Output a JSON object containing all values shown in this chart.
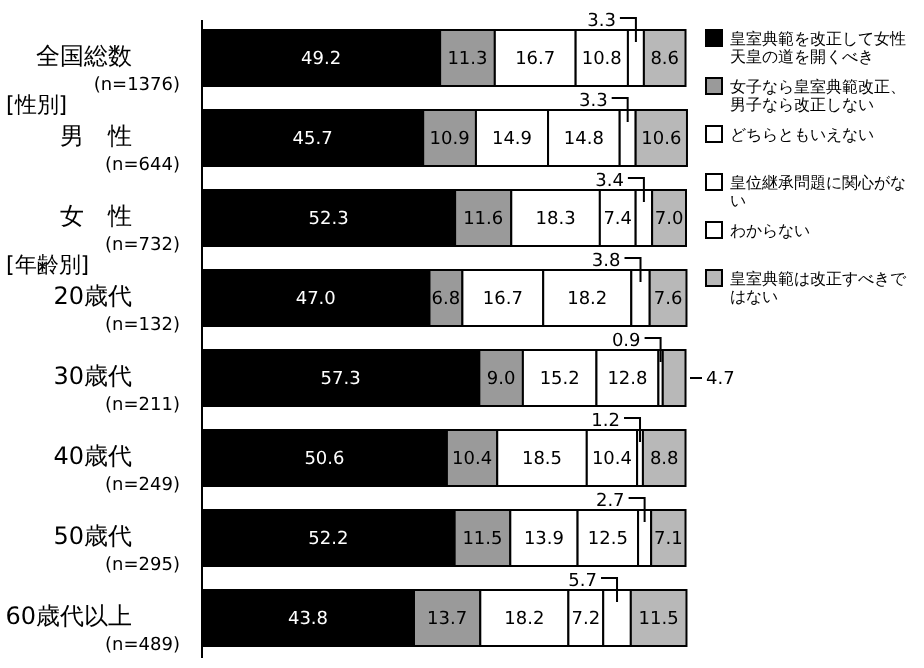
{
  "chart_data": {
    "type": "bar",
    "orientation": "horizontal",
    "stacked": true,
    "legend": "right",
    "xlim": [
      0,
      100
    ],
    "categories": [
      "全国総数\n(n=1376)",
      "男　性\n(n=644)",
      "女　性\n(n=732)",
      "20歳代\n(n=132)",
      "30歳代\n(n=211)",
      "40歳代\n(n=249)",
      "50歳代\n(n=295)",
      "60歳代以上\n(n=489)"
    ],
    "annotations": [
      "[性別]",
      "[年齢別]"
    ],
    "series": [
      {
        "name": "皇室典範を改正して女性天皇の道を開くべき",
        "color": "#000000",
        "values": [
          49.2,
          45.7,
          52.3,
          47.0,
          57.3,
          50.6,
          52.2,
          43.8
        ],
        "value_labels": [
          "49.2",
          "45.7",
          "52.3",
          "47.0",
          "57.3",
          "50.6",
          "52.2",
          "43.8"
        ]
      },
      {
        "name": "女子なら皇室典範改正、男子なら改正しない",
        "color": "#9a9a9a",
        "values": [
          11.3,
          10.9,
          11.6,
          6.8,
          9.0,
          10.4,
          11.5,
          13.7
        ],
        "value_labels": [
          "11.3",
          "10.9",
          "11.6",
          "6.8",
          "9.0",
          "10.4",
          "11.5",
          "13.7"
        ]
      },
      {
        "name": "どちらともいえない",
        "color": "#ffffff",
        "values": [
          16.7,
          14.9,
          18.3,
          16.7,
          15.2,
          18.5,
          13.9,
          18.2
        ],
        "value_labels": [
          "16.7",
          "14.9",
          "18.3",
          "16.7",
          "15.2",
          "18.5",
          "13.9",
          "18.2"
        ]
      },
      {
        "name": "皇位継承問題に関心がない",
        "color": "#ffffff",
        "values": [
          10.8,
          14.8,
          7.4,
          18.2,
          12.8,
          10.4,
          12.5,
          7.2
        ],
        "value_labels": [
          "10.8",
          "14.8",
          "7.4",
          "18.2",
          "12.8",
          "10.4",
          "12.5",
          "7.2"
        ]
      },
      {
        "name": "わからない",
        "color": "#ffffff",
        "values": [
          3.3,
          3.3,
          3.4,
          3.8,
          0.9,
          1.2,
          2.7,
          5.7
        ],
        "value_labels": [
          "3.3",
          "3.3",
          "3.4",
          "3.8",
          "0.9",
          "1.2",
          "2.7",
          "5.7"
        ]
      },
      {
        "name": "皇室典範は改正すべきではない",
        "color": "#b8b8b8",
        "values": [
          8.6,
          10.6,
          7.0,
          7.6,
          4.7,
          8.8,
          7.1,
          11.5
        ],
        "value_labels": [
          "8.6",
          "10.6",
          "7.0",
          "7.6",
          "4.7",
          "8.8",
          "7.1",
          "11.5"
        ]
      }
    ]
  }
}
